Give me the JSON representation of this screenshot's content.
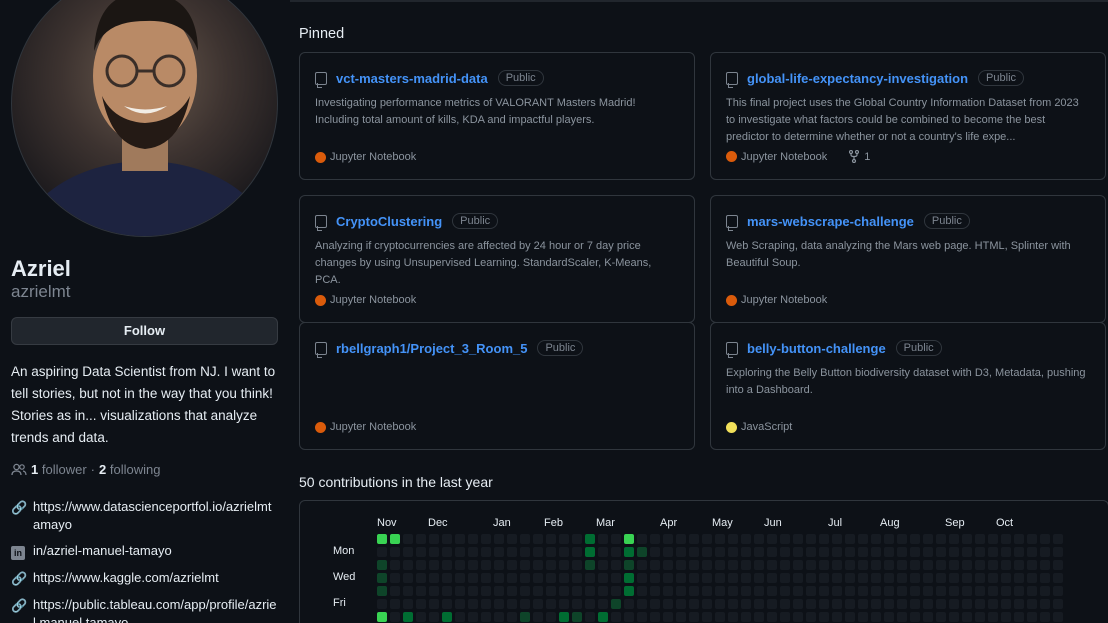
{
  "profile": {
    "name": "Azriel",
    "login": "azrielmt",
    "follow_label": "Follow",
    "bio": "An aspiring Data Scientist from NJ. I want to tell stories, but not in the way that you think! Stories as in... visualizations that analyze trends and data.",
    "followers_count": "1",
    "followers_label": "follower",
    "separator": "·",
    "following_count": "2",
    "following_label": "following",
    "links": [
      {
        "icon": "link-icon",
        "text": "https://www.datascienceportfol.io/azrielmtamayo"
      },
      {
        "icon": "linkedin-icon",
        "text": "in/azriel-manuel-tamayo"
      },
      {
        "icon": "link-icon",
        "text": "https://www.kaggle.com/azrielmt"
      },
      {
        "icon": "link-icon",
        "text": "https://public.tableau.com/app/profile/azriel.manuel.tamayo"
      }
    ]
  },
  "pinned": {
    "title": "Pinned",
    "repos": [
      {
        "name": "vct-masters-madrid-data",
        "badge": "Public",
        "description": "Investigating performance metrics of VALORANT Masters Madrid! Including total amount of kills, KDA and impactful players.",
        "language": "Jupyter Notebook",
        "lang_color": "#DA5B0B",
        "forks": ""
      },
      {
        "name": "global-life-expectancy-investigation",
        "badge": "Public",
        "description": "This final project uses the Global Country Information Dataset from 2023 to investigate what factors could be combined to become the best predictor to determine whether or not a country's life expe...",
        "language": "Jupyter Notebook",
        "lang_color": "#DA5B0B",
        "forks": "1"
      },
      {
        "name": "CryptoClustering",
        "badge": "Public",
        "description": "Analyzing if cryptocurrencies are affected by 24 hour or 7 day price changes by using Unsupervised Learning. StandardScaler, K-Means, PCA.",
        "language": "Jupyter Notebook",
        "lang_color": "#DA5B0B",
        "forks": ""
      },
      {
        "name": "mars-webscrape-challenge",
        "badge": "Public",
        "description": "Web Scraping, data analyzing the Mars web page. HTML, Splinter with Beautiful Soup.",
        "language": "Jupyter Notebook",
        "lang_color": "#DA5B0B",
        "forks": ""
      },
      {
        "name": "rbellgraph1/Project_3_Room_5",
        "badge": "Public",
        "description": "",
        "language": "Jupyter Notebook",
        "lang_color": "#DA5B0B",
        "forks": ""
      },
      {
        "name": "belly-button-challenge",
        "badge": "Public",
        "description": "Exploring the Belly Button biodiversity dataset with D3, Metadata, pushing into a Dashboard.",
        "language": "JavaScript",
        "lang_color": "#f1e05a",
        "forks": ""
      }
    ]
  },
  "contributions": {
    "title": "50 contributions in the last year",
    "months": [
      "Nov",
      "Dec",
      "Jan",
      "Feb",
      "Mar",
      "Apr",
      "May",
      "Jun",
      "Jul",
      "Aug",
      "Sep",
      "Oct"
    ],
    "days": [
      "Mon",
      "Wed",
      "Fri"
    ],
    "levels": {
      "1": [
        [
          0,
          0,
          3
        ],
        [
          1,
          0,
          3
        ],
        [
          16,
          0,
          2
        ],
        [
          19,
          0,
          3
        ],
        [
          16,
          1,
          2
        ],
        [
          19,
          1,
          2
        ],
        [
          20,
          1,
          1
        ],
        [
          0,
          2,
          1
        ],
        [
          16,
          2,
          1
        ],
        [
          19,
          2,
          1
        ],
        [
          0,
          3,
          1
        ],
        [
          19,
          3,
          2
        ],
        [
          0,
          4,
          1
        ],
        [
          19,
          4,
          2
        ],
        [
          18,
          5,
          1
        ],
        [
          0,
          6,
          3
        ],
        [
          2,
          6,
          2
        ],
        [
          5,
          6,
          2
        ],
        [
          11,
          6,
          1
        ],
        [
          14,
          6,
          2
        ],
        [
          15,
          6,
          1
        ],
        [
          17,
          6,
          2
        ]
      ]
    }
  }
}
